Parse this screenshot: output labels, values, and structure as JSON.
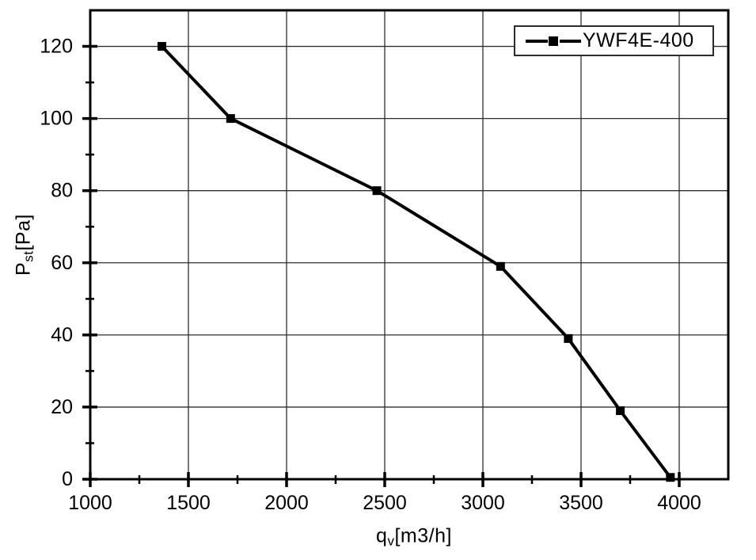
{
  "figure": {
    "background": "#ffffff",
    "line_color": "#000000",
    "grid_color": "#2e2e2e",
    "frame_color": "#000000",
    "text_color": "#000000"
  },
  "chart_data": {
    "type": "line",
    "title": "",
    "xlabel": {
      "prefix": "q",
      "sub": "v",
      "suffix": "[m3/h]"
    },
    "ylabel": {
      "prefix": "P",
      "sub": "st",
      "suffix": "[Pa]"
    },
    "xlim": [
      1000,
      4250
    ],
    "ylim": [
      0,
      130
    ],
    "x_major_ticks": [
      1000,
      1500,
      2000,
      2500,
      3000,
      3500,
      4000
    ],
    "x_minor_ticks": [
      1250,
      1750,
      2250,
      2750,
      3250,
      3750
    ],
    "y_major_ticks": [
      0,
      20,
      40,
      60,
      80,
      100,
      120
    ],
    "y_minor_ticks": [
      10,
      30,
      50,
      70,
      90,
      110
    ],
    "grid": "major",
    "legend_position": "top-right",
    "series": [
      {
        "name": "YWF4E-400",
        "color": "#000000",
        "marker": "square",
        "x": [
          1365,
          1715,
          2460,
          3090,
          3435,
          3700,
          3955
        ],
        "y": [
          120,
          100,
          80,
          59,
          39,
          19,
          0.5
        ]
      }
    ]
  }
}
